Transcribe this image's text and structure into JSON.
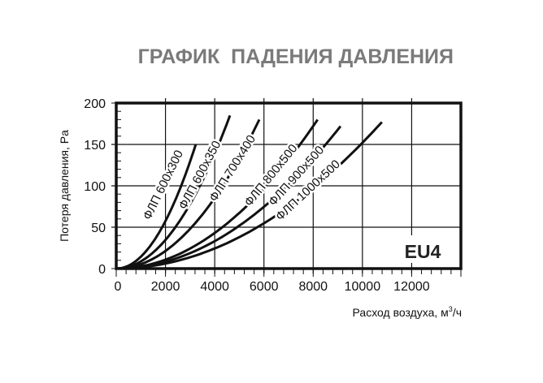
{
  "chart_data": {
    "type": "line",
    "title": "ГРАФИК  ПАДЕНИЯ ДАВЛЕНИЯ",
    "xlabel": "Расход воздуха, м³/ч",
    "xlabel_base": "Расход воздуха, м",
    "xlabel_sup": "3",
    "xlabel_tail": "/ч",
    "ylabel": "Потеря давления, Pa",
    "badge": "EU4",
    "xlim": [
      0,
      14000
    ],
    "ylim": [
      0,
      200
    ],
    "xticks": [
      0,
      2000,
      4000,
      6000,
      8000,
      10000,
      12000
    ],
    "xtick_labels": [
      "0",
      "2000",
      "4000",
      "6000",
      "8000",
      "10000",
      "12000"
    ],
    "yticks": [
      0,
      50,
      100,
      150,
      200
    ],
    "ytick_labels": [
      "0",
      "50",
      "100",
      "150",
      "200"
    ],
    "grid": true,
    "line_color": "#111111",
    "title_color": "#7a7a7a",
    "series": [
      {
        "name": "ФЛП 600x300",
        "x": [
          0,
          1000,
          2000,
          3000,
          3230
        ],
        "y": [
          0,
          14,
          58,
          129,
          150
        ]
      },
      {
        "name": "ФЛП 600x350",
        "x": [
          0,
          1000,
          2000,
          3000,
          4000,
          4620
        ],
        "y": [
          0,
          9,
          35,
          78,
          139,
          185
        ]
      },
      {
        "name": "ФЛП 700x400",
        "x": [
          0,
          1000,
          2000,
          3000,
          4000,
          5000,
          5810
        ],
        "y": [
          0,
          5,
          21,
          48,
          85,
          133,
          180
        ]
      },
      {
        "name": "ФЛП 800x500",
        "x": [
          0,
          1000,
          2000,
          3000,
          4000,
          5000,
          6000,
          7000,
          8000,
          8180
        ],
        "y": [
          0,
          3,
          11,
          24,
          43,
          67,
          97,
          132,
          172,
          180
        ]
      },
      {
        "name": "ФЛП 900x500",
        "x": [
          0,
          1000,
          2000,
          3000,
          4000,
          5000,
          6000,
          7000,
          8000,
          9000,
          9110
        ],
        "y": [
          0,
          2,
          8,
          19,
          33,
          52,
          75,
          101,
          132,
          168,
          172
        ]
      },
      {
        "name": "ФЛП 1000x500",
        "x": [
          0,
          1000,
          2000,
          3000,
          4000,
          5000,
          6000,
          7000,
          8000,
          9000,
          10000,
          10790
        ],
        "y": [
          0,
          2,
          6,
          14,
          24,
          38,
          55,
          74,
          97,
          123,
          152,
          177
        ]
      }
    ]
  }
}
